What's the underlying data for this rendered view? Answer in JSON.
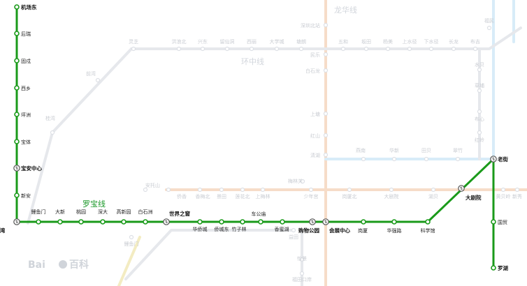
{
  "line": {
    "name": "罗宝线",
    "color": "#1a9a1a",
    "stations": [
      {
        "name": "机场东",
        "bold": true
      },
      {
        "name": "后瑞"
      },
      {
        "name": "固戍"
      },
      {
        "name": "西乡"
      },
      {
        "name": "坪洲"
      },
      {
        "name": "宝体"
      },
      {
        "name": "宝安中心",
        "bold": true,
        "interchange": true
      },
      {
        "name": "新安"
      },
      {
        "name": "前海湾",
        "bold": true,
        "interchange": true
      },
      {
        "name": "鲤鱼门"
      },
      {
        "name": "大新"
      },
      {
        "name": "桃园"
      },
      {
        "name": "深大"
      },
      {
        "name": "高新园"
      },
      {
        "name": "白石洲"
      },
      {
        "name": "世界之窗",
        "bold": true,
        "interchange": true
      },
      {
        "name": "华侨城"
      },
      {
        "name": "侨城东"
      },
      {
        "name": "竹子林"
      },
      {
        "name": "车公庙"
      },
      {
        "name": "香蜜湖"
      },
      {
        "name": "购物公园",
        "bold": true,
        "interchange": true
      },
      {
        "name": "会展中心",
        "bold": true,
        "interchange": true
      },
      {
        "name": "岗厦"
      },
      {
        "name": "华强路"
      },
      {
        "name": "科学馆"
      },
      {
        "name": "大剧院",
        "bold": true,
        "interchange": true
      },
      {
        "name": "老街",
        "bold": true,
        "interchange": true
      },
      {
        "name": "国贸"
      },
      {
        "name": "罗湖",
        "bold": true
      }
    ]
  },
  "background_lines": {
    "longhua_name": "龙华线",
    "huanzhong_name": "环中线",
    "huanzhong_stations": [
      "五和",
      "坂田",
      "杨美",
      "上水径",
      "下水径",
      "长龙",
      "布吉",
      "丹竹头",
      "六约",
      "塘坑",
      "横岗"
    ],
    "huanzhong_west": [
      "灵芝",
      "洪浪北",
      "兴东",
      "留仙洞",
      "西丽",
      "大学城",
      "塘朗",
      "长岭陂"
    ],
    "longhua_stations": [
      "深圳北站",
      "民乐",
      "白石龙",
      "上塘",
      "红山",
      "清湖"
    ],
    "misc_stations": [
      "安托山",
      "侨香",
      "香梅北",
      "景田",
      "莲花北",
      "上梅林",
      "梅林关",
      "少年宫",
      "岗厦北",
      "燕南",
      "华新",
      "田贝",
      "翠竹",
      "水贝",
      "草埔",
      "布心",
      "红岭",
      "大剧院",
      "湖贝",
      "黄贝岭",
      "新秀",
      "桂湾",
      "前湾",
      "鲤鱼门",
      "怡景",
      "福田口岸",
      "益田",
      "福民"
    ]
  },
  "watermark": {
    "brand": "Bai",
    "brand_cn": "百科"
  },
  "colors": {
    "line": "#1a9a1a",
    "faint_line": "#e6e8ec",
    "faint_orange": "#f6dcc8",
    "faint_blue": "#d8ecf8"
  }
}
